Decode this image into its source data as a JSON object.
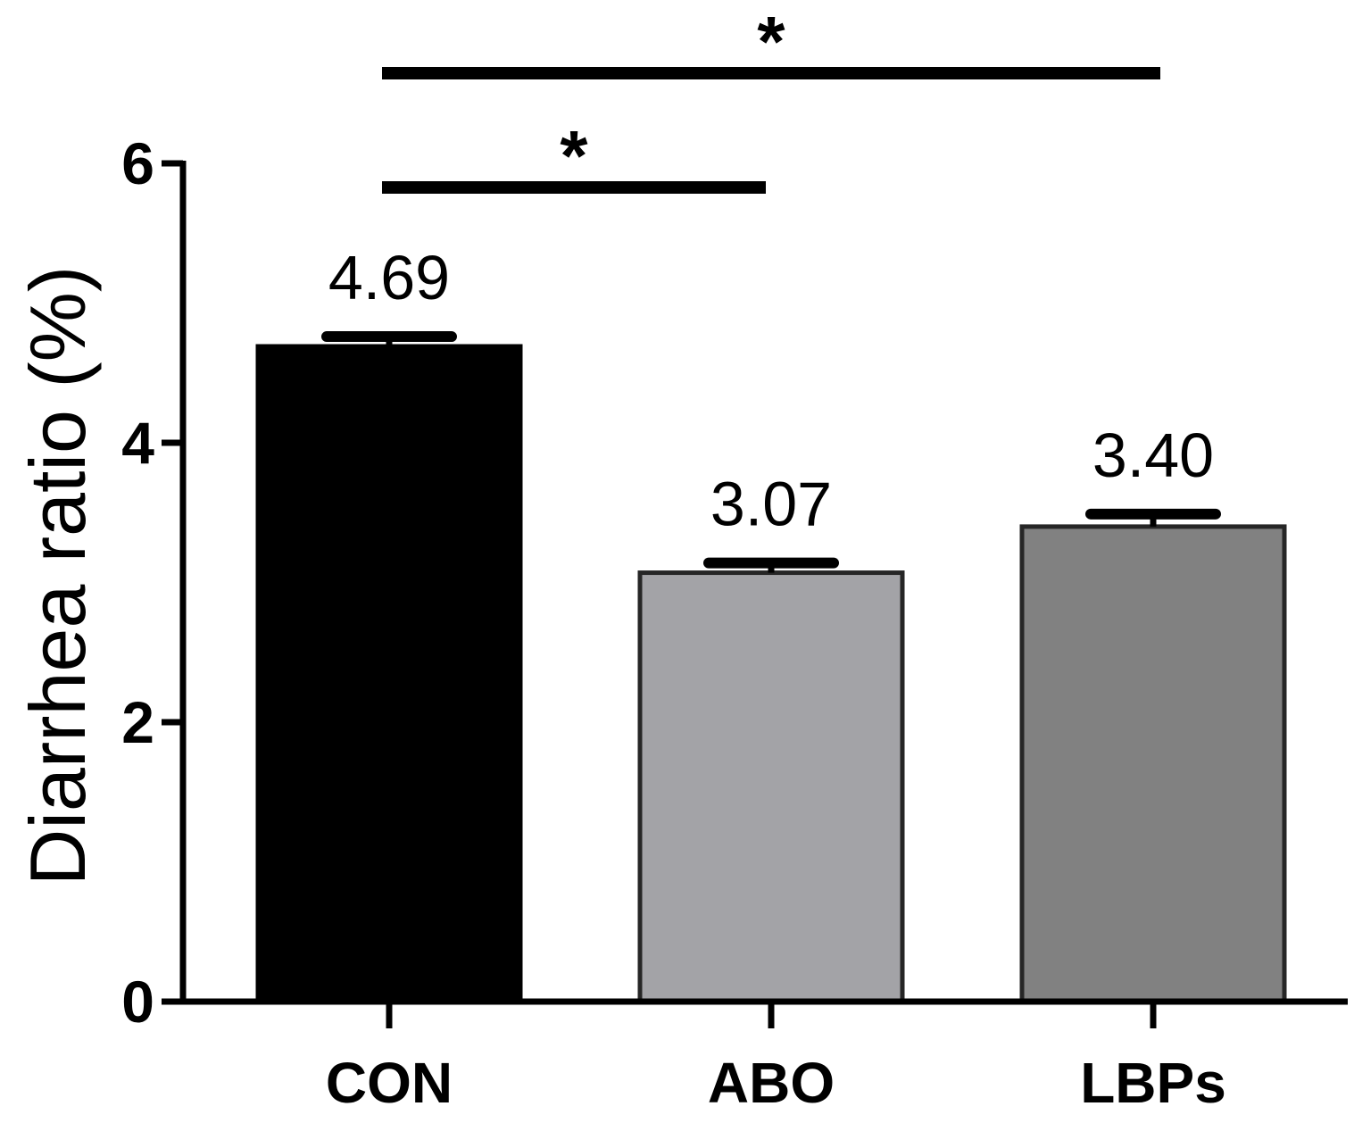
{
  "chart_data": {
    "type": "bar",
    "categories": [
      "CON",
      "ABO",
      "LBPs"
    ],
    "values": [
      4.69,
      3.07,
      3.4
    ],
    "errors": [
      0.07,
      0.07,
      0.09
    ],
    "value_labels": [
      "4.69",
      "3.07",
      "3.40"
    ],
    "colors": [
      "#000000",
      "#A3A3A7",
      "#818181"
    ],
    "ylabel": "Diarrhea ratio (%)",
    "xlabel": "",
    "ylim": [
      0,
      6
    ],
    "yticks": [
      0,
      2,
      4,
      6
    ],
    "ytick_labels": [
      "0",
      "2",
      "4",
      "6"
    ],
    "grid": false,
    "significance": [
      {
        "from": "CON",
        "to": "ABO",
        "label": "*"
      },
      {
        "from": "CON",
        "to": "LBPs",
        "label": "*"
      }
    ]
  }
}
